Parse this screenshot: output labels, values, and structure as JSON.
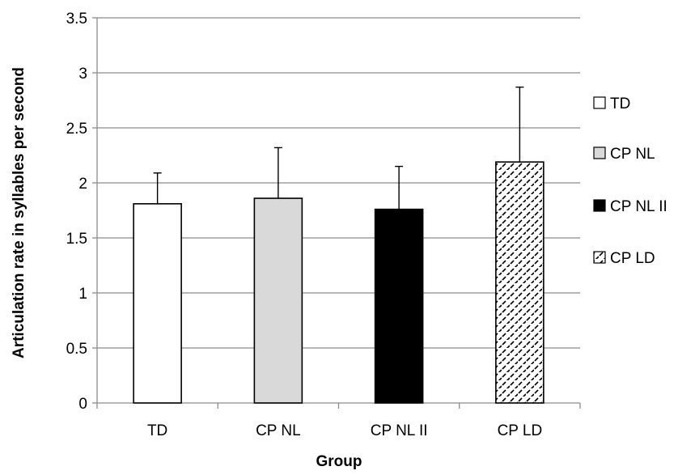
{
  "chart_data": {
    "type": "bar",
    "title": "",
    "xlabel": "Group",
    "ylabel": "Articulation rate in syllables per second",
    "categories": [
      "TD",
      "CP NL",
      "CP NL II",
      "CP LD"
    ],
    "values": [
      1.81,
      1.86,
      1.76,
      2.19
    ],
    "error_upper": [
      2.09,
      2.32,
      2.15,
      2.87
    ],
    "ylim": [
      0,
      3.5
    ],
    "yticks": [
      "0",
      "0.5",
      "1",
      "1.5",
      "2",
      "2.5",
      "3",
      "3.5"
    ],
    "ytick_values": [
      0,
      0.5,
      1,
      1.5,
      2,
      2.5,
      3,
      3.5
    ],
    "grid": true,
    "legend_position": "right",
    "legend": [
      "TD",
      "CP NL",
      "CP NL II",
      "CP LD"
    ],
    "bar_styles": [
      {
        "fill": "#ffffff",
        "pattern": "none"
      },
      {
        "fill": "#d9d9d9",
        "pattern": "none"
      },
      {
        "fill": "#000000",
        "pattern": "none"
      },
      {
        "fill": "#ffffff",
        "pattern": "diagonal-dashes"
      }
    ],
    "colors": {
      "gridline": "#8c8c8c",
      "axis": "#8c8c8c",
      "bar_outline": "#000000"
    }
  }
}
